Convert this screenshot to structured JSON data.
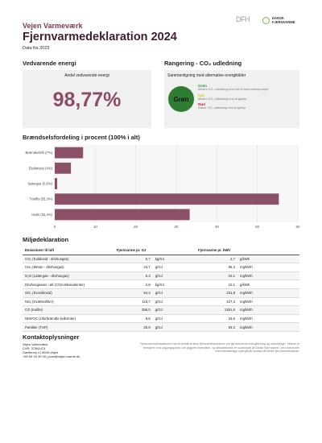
{
  "header": {
    "org": "Vejen Varmeværk",
    "title": "Fjernvarmedeklaration 2024",
    "subtitle": "Data fra 2023",
    "logo_left": "DFH",
    "logo_right": "DANSK FJERNVARME"
  },
  "renewable": {
    "heading": "Vedvarende energi",
    "box_title": "Andel vedvarende energi",
    "value": "98,77%"
  },
  "ranking": {
    "heading": "Rangering - CO₂ udledning",
    "box_title": "Sammenligning med alternative energikilder",
    "badge": "Grøn",
    "legend": [
      {
        "label": "Grøn",
        "text": "Mindre CO₂ udledning end luft til vand varmepumpe"
      },
      {
        "label": "Gul",
        "text": "Mindre CO₂ udledning end et gasfyr"
      },
      {
        "label": "Rød",
        "text": "Større CO₂ udledning end et gasfyr"
      }
    ]
  },
  "chart_data": {
    "type": "hbar",
    "title": "Brændselsfordeling i procent (100% i alt)",
    "categories": [
      "Brændselsfri (7%)",
      "Elektricitet (4%)",
      "Naturgas (0,6%)",
      "Træflis (55,3%)",
      "Halm (33,3%)"
    ],
    "values": [
      7,
      4,
      0.6,
      55.3,
      33.3
    ],
    "color": "#8a5169",
    "xlim": [
      0,
      60
    ],
    "xticks": [
      0,
      10,
      20,
      30,
      40,
      50,
      60
    ],
    "grid": true
  },
  "environment": {
    "heading": "Miljødeklaration",
    "table": {
      "header": [
        "Emissioner til luft",
        "Fjernvarme pr. GJ",
        "Fjernvarme pr. kWh"
      ],
      "rows": [
        [
          "CO₂ (Kuldioxid - drivhusgas)",
          "0,7",
          "kg/GJ",
          "2,7",
          "g/kWh"
        ],
        [
          "CH₄ (Metan - drivhusgas)",
          "23,7",
          "g/GJ",
          "85,3",
          "mg/kWh"
        ],
        [
          "N₂O (Lattergas - drivhusgas)",
          "5,3",
          "g/GJ",
          "19,1",
          "mg/kWh"
        ],
        [
          "Drivhusgasser i alt (CO2-ækvivalenter)",
          "2,8",
          "kg/GJ",
          "10,1",
          "g/kWh"
        ],
        [
          "SO₂ (Svovldioxid)",
          "64,4",
          "g/GJ",
          "231,8",
          "mg/kWh"
        ],
        [
          "NOₓ (Kvælstofilter)",
          "118,7",
          "g/GJ",
          "427,3",
          "mg/kWh"
        ],
        [
          "CO (Kulilte)",
          "356,0",
          "g/GJ",
          "1281,6",
          "mg/kWh"
        ],
        [
          "NMVOC (Uforbrændte kulbrinter)",
          "9,6",
          "g/GJ",
          "34,6",
          "mg/kWh"
        ],
        [
          "Partikler (TSP)",
          "25,9",
          "g/GJ",
          "93,2",
          "mg/kWh"
        ]
      ]
    }
  },
  "contact": {
    "heading": "Kontaktoplysninger",
    "lines": [
      "Vejen Varmeværk",
      "CVR: 37361474",
      "Gørtlervej 4 | 6600 Vejen",
      "+45 69 15 39 00 | post@vejen-varme.dk"
    ],
    "note": "Fjernvarmedeklarationen har til formål at lære fjernvarmekunderne om fjernvarmens energiforbrug og udledninger. Tallene er beregnet med udgangspunkt i de opgjorte brændsler, og deklarationen er udarbejdet af Dansk Fjernvarme. Ved eventuelle indholdsmæssige spørgsmål kontakt dit lokale fjernvarmeselskab."
  }
}
